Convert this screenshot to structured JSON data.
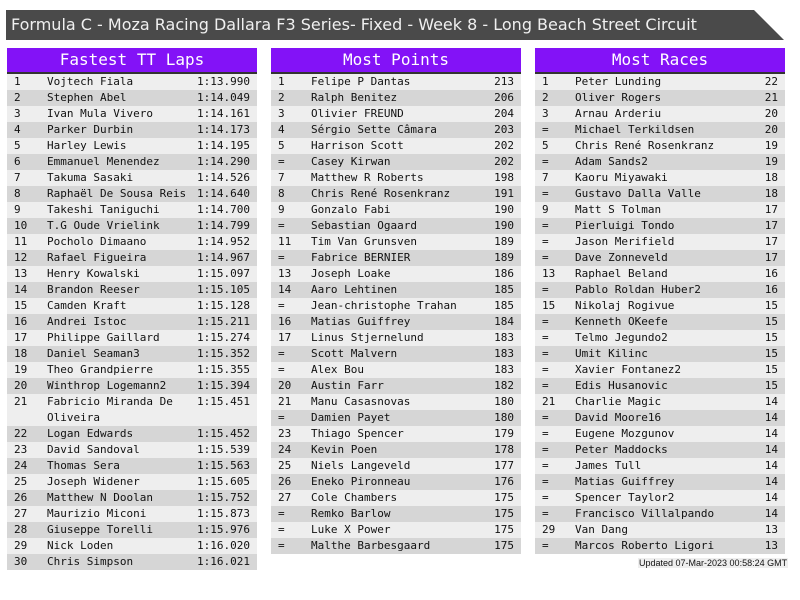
{
  "title": "Formula C - Moza Racing Dallara F3 Series- Fixed - Week 8 - Long Beach Street Circuit",
  "accent_color": "#8312f7",
  "updated": "Updated 07-Mar-2023 00:58:24 GMT",
  "panels": [
    {
      "heading": "Fastest TT Laps",
      "rows": [
        [
          "1",
          "Vojtech Fiala",
          "1:13.990"
        ],
        [
          "2",
          "Stephen Abel",
          "1:14.049"
        ],
        [
          "3",
          "Ivan Mula Vivero",
          "1:14.161"
        ],
        [
          "4",
          "Parker Durbin",
          "1:14.173"
        ],
        [
          "5",
          "Harley Lewis",
          "1:14.195"
        ],
        [
          "6",
          "Emmanuel Menendez",
          "1:14.290"
        ],
        [
          "7",
          "Takuma Sasaki",
          "1:14.526"
        ],
        [
          "8",
          "Raphaël De Sousa Reis",
          "1:14.640"
        ],
        [
          "9",
          "Takeshi Taniguchi",
          "1:14.700"
        ],
        [
          "10",
          "T.G Oude Vrielink",
          "1:14.799"
        ],
        [
          "11",
          "Pocholo Dimaano",
          "1:14.952"
        ],
        [
          "12",
          "Rafael Figueira",
          "1:14.967"
        ],
        [
          "13",
          "Henry Kowalski",
          "1:15.097"
        ],
        [
          "14",
          "Brandon Reeser",
          "1:15.105"
        ],
        [
          "15",
          "Camden Kraft",
          "1:15.128"
        ],
        [
          "16",
          "Andrei Istoc",
          "1:15.211"
        ],
        [
          "17",
          "Philippe Gaillard",
          "1:15.274"
        ],
        [
          "18",
          "Daniel Seaman3",
          "1:15.352"
        ],
        [
          "19",
          "Theo Grandpierre",
          "1:15.355"
        ],
        [
          "20",
          "Winthrop Logemann2",
          "1:15.394"
        ],
        [
          "21",
          "Fabricio Miranda De Oliveira",
          "1:15.451"
        ],
        [
          "22",
          "Logan Edwards",
          "1:15.452"
        ],
        [
          "23",
          "David Sandoval",
          "1:15.539"
        ],
        [
          "24",
          "Thomas Sera",
          "1:15.563"
        ],
        [
          "25",
          "Joseph Widener",
          "1:15.605"
        ],
        [
          "26",
          "Matthew N Doolan",
          "1:15.752"
        ],
        [
          "27",
          "Maurizio Miconi",
          "1:15.873"
        ],
        [
          "28",
          "Giuseppe Torelli",
          "1:15.976"
        ],
        [
          "29",
          "Nick Loden",
          "1:16.020"
        ],
        [
          "30",
          "Chris Simpson",
          "1:16.021"
        ]
      ]
    },
    {
      "heading": "Most Points",
      "rows": [
        [
          "1",
          "Felipe P Dantas",
          "213"
        ],
        [
          "2",
          "Ralph Benitez",
          "206"
        ],
        [
          "3",
          "Olivier FREUND",
          "204"
        ],
        [
          "4",
          "Sérgio Sette Câmara",
          "203"
        ],
        [
          "5",
          "Harrison Scott",
          "202"
        ],
        [
          "=",
          "Casey Kirwan",
          "202"
        ],
        [
          "7",
          "Matthew R Roberts",
          "198"
        ],
        [
          "8",
          "Chris René Rosenkranz",
          "191"
        ],
        [
          "9",
          "Gonzalo Fabi",
          "190"
        ],
        [
          "=",
          "Sebastian Ogaard",
          "190"
        ],
        [
          "11",
          "Tim Van Grunsven",
          "189"
        ],
        [
          "=",
          "Fabrice BERNIER",
          "189"
        ],
        [
          "13",
          "Joseph Loake",
          "186"
        ],
        [
          "14",
          "Aaro Lehtinen",
          "185"
        ],
        [
          "=",
          "Jean-christophe Trahan",
          "185"
        ],
        [
          "16",
          "Matias Guiffrey",
          "184"
        ],
        [
          "17",
          "Linus Stjernelund",
          "183"
        ],
        [
          "=",
          "Scott Malvern",
          "183"
        ],
        [
          "=",
          "Alex Bou",
          "183"
        ],
        [
          "20",
          "Austin Farr",
          "182"
        ],
        [
          "21",
          "Manu Casasnovas",
          "180"
        ],
        [
          "=",
          "Damien Payet",
          "180"
        ],
        [
          "23",
          "Thiago Spencer",
          "179"
        ],
        [
          "24",
          "Kevin Poen",
          "178"
        ],
        [
          "25",
          "Niels Langeveld",
          "177"
        ],
        [
          "26",
          "Eneko Pironneau",
          "176"
        ],
        [
          "27",
          "Cole Chambers",
          "175"
        ],
        [
          "=",
          "Remko Barlow",
          "175"
        ],
        [
          "=",
          "Luke X Power",
          "175"
        ],
        [
          "=",
          "Malthe Barbesgaard",
          "175"
        ]
      ]
    },
    {
      "heading": "Most Races",
      "rows": [
        [
          "1",
          "Peter Lunding",
          "22"
        ],
        [
          "2",
          "Oliver Rogers",
          "21"
        ],
        [
          "3",
          "Arnau Arderiu",
          "20"
        ],
        [
          "=",
          "Michael Terkildsen",
          "20"
        ],
        [
          "5",
          "Chris René Rosenkranz",
          "19"
        ],
        [
          "=",
          "Adam Sands2",
          "19"
        ],
        [
          "7",
          "Kaoru Miyawaki",
          "18"
        ],
        [
          "=",
          "Gustavo Dalla Valle",
          "18"
        ],
        [
          "9",
          "Matt S Tolman",
          "17"
        ],
        [
          "=",
          "Pierluigi Tondo",
          "17"
        ],
        [
          "=",
          "Jason Merifield",
          "17"
        ],
        [
          "=",
          "Dave Zonneveld",
          "17"
        ],
        [
          "13",
          "Raphael Beland",
          "16"
        ],
        [
          "=",
          "Pablo Roldan Huber2",
          "16"
        ],
        [
          "15",
          "Nikolaj Rogivue",
          "15"
        ],
        [
          "=",
          "Kenneth OKeefe",
          "15"
        ],
        [
          "=",
          "Telmo Jegundo2",
          "15"
        ],
        [
          "=",
          "Umit Kilinc",
          "15"
        ],
        [
          "=",
          "Xavier Fontanez2",
          "15"
        ],
        [
          "=",
          "Edis Husanovic",
          "15"
        ],
        [
          "21",
          "Charlie Magic",
          "14"
        ],
        [
          "=",
          "David Moore16",
          "14"
        ],
        [
          "=",
          "Eugene Mozgunov",
          "14"
        ],
        [
          "=",
          "Peter Maddocks",
          "14"
        ],
        [
          "=",
          "James Tull",
          "14"
        ],
        [
          "=",
          "Matias Guiffrey",
          "14"
        ],
        [
          "=",
          "Spencer Taylor2",
          "14"
        ],
        [
          "=",
          "Francisco Villalpando",
          "14"
        ],
        [
          "29",
          "Van Dang",
          "13"
        ],
        [
          "=",
          "Marcos Roberto Ligori",
          "13"
        ]
      ]
    }
  ]
}
